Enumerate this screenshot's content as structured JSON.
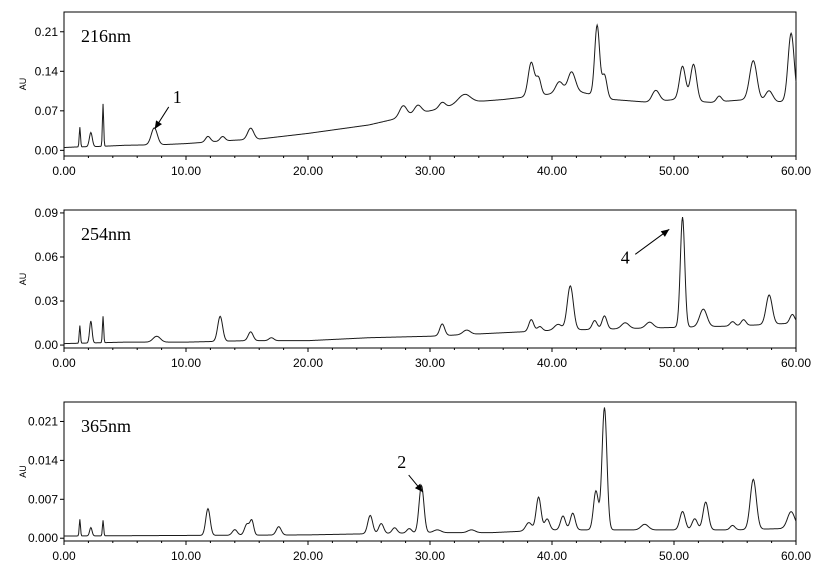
{
  "chart_data": [
    {
      "type": "line",
      "title": "216nm",
      "ylabel": "AU",
      "xlabel": "",
      "xlim": [
        0,
        60
      ],
      "ylim": [
        -0.01,
        0.245
      ],
      "xticks": [
        "0.00",
        "10.00",
        "20.00",
        "30.00",
        "40.00",
        "50.00",
        "60.00"
      ],
      "yticks": [
        "0.00",
        "0.07",
        "0.14",
        "0.21"
      ],
      "ytick_values": [
        0,
        0.07,
        0.14,
        0.21
      ],
      "grid": false,
      "color": "#1a1a1a",
      "baseline": [
        [
          0,
          0.005
        ],
        [
          1,
          0.006
        ],
        [
          3,
          0.007
        ],
        [
          5,
          0.009
        ],
        [
          8,
          0.01
        ],
        [
          10,
          0.012
        ],
        [
          14,
          0.018
        ],
        [
          16,
          0.02
        ],
        [
          20,
          0.03
        ],
        [
          25,
          0.045
        ],
        [
          28,
          0.06
        ],
        [
          30,
          0.07
        ],
        [
          33,
          0.085
        ],
        [
          36,
          0.09
        ],
        [
          38,
          0.095
        ],
        [
          40,
          0.1
        ],
        [
          42,
          0.105
        ],
        [
          45,
          0.09
        ],
        [
          48,
          0.085
        ],
        [
          50,
          0.09
        ],
        [
          53,
          0.085
        ],
        [
          56,
          0.09
        ],
        [
          58,
          0.085
        ],
        [
          60,
          0.088
        ]
      ],
      "peaks": [
        [
          1.3,
          0.035,
          0.05
        ],
        [
          2.2,
          0.025,
          0.12
        ],
        [
          3.2,
          0.075,
          0.05
        ],
        [
          7.4,
          0.03,
          0.25
        ],
        [
          11.8,
          0.01,
          0.2
        ],
        [
          13,
          0.008,
          0.2
        ],
        [
          15.3,
          0.02,
          0.25
        ],
        [
          27.8,
          0.02,
          0.3
        ],
        [
          29,
          0.015,
          0.3
        ],
        [
          31,
          0.01,
          0.25
        ],
        [
          32.8,
          0.015,
          0.5
        ],
        [
          38.3,
          0.06,
          0.25
        ],
        [
          38.9,
          0.03,
          0.2
        ],
        [
          40.6,
          0.02,
          0.3
        ],
        [
          41.6,
          0.035,
          0.3
        ],
        [
          43.7,
          0.125,
          0.2
        ],
        [
          44.3,
          0.04,
          0.2
        ],
        [
          48.5,
          0.02,
          0.3
        ],
        [
          50.7,
          0.06,
          0.25
        ],
        [
          51.6,
          0.065,
          0.25
        ],
        [
          53.7,
          0.01,
          0.2
        ],
        [
          56.5,
          0.07,
          0.3
        ],
        [
          57.8,
          0.02,
          0.3
        ],
        [
          59.6,
          0.12,
          0.25
        ]
      ],
      "annotations": [
        {
          "label": "1",
          "x": 7.6,
          "y": 0.045
        }
      ]
    },
    {
      "type": "line",
      "title": "254nm",
      "ylabel": "AU",
      "xlabel": "",
      "xlim": [
        0,
        60
      ],
      "ylim": [
        -0.002,
        0.092
      ],
      "xticks": [
        "0.00",
        "10.00",
        "20.00",
        "30.00",
        "40.00",
        "50.00",
        "60.00"
      ],
      "yticks": [
        "0.00",
        "0.03",
        "0.06",
        "0.09"
      ],
      "ytick_values": [
        0,
        0.03,
        0.06,
        0.09
      ],
      "grid": false,
      "color": "#1a1a1a",
      "baseline": [
        [
          0,
          0.001
        ],
        [
          5,
          0.002
        ],
        [
          10,
          0.002
        ],
        [
          15,
          0.003
        ],
        [
          20,
          0.003
        ],
        [
          25,
          0.005
        ],
        [
          30,
          0.006
        ],
        [
          35,
          0.008
        ],
        [
          40,
          0.01
        ],
        [
          45,
          0.011
        ],
        [
          50,
          0.012
        ],
        [
          55,
          0.013
        ],
        [
          60,
          0.015
        ]
      ],
      "peaks": [
        [
          1.3,
          0.012,
          0.05
        ],
        [
          2.2,
          0.015,
          0.1
        ],
        [
          3.2,
          0.018,
          0.05
        ],
        [
          7.6,
          0.004,
          0.3
        ],
        [
          12.8,
          0.017,
          0.2
        ],
        [
          15.3,
          0.006,
          0.2
        ],
        [
          17,
          0.002,
          0.2
        ],
        [
          31,
          0.008,
          0.2
        ],
        [
          33,
          0.003,
          0.3
        ],
        [
          38.3,
          0.008,
          0.2
        ],
        [
          39,
          0.003,
          0.2
        ],
        [
          40.5,
          0.004,
          0.3
        ],
        [
          41.5,
          0.03,
          0.25
        ],
        [
          43.5,
          0.006,
          0.2
        ],
        [
          44.3,
          0.009,
          0.2
        ],
        [
          46,
          0.004,
          0.3
        ],
        [
          48,
          0.004,
          0.3
        ],
        [
          50.7,
          0.075,
          0.18
        ],
        [
          52.4,
          0.012,
          0.3
        ],
        [
          54.8,
          0.003,
          0.2
        ],
        [
          55.7,
          0.004,
          0.2
        ],
        [
          57.8,
          0.02,
          0.25
        ],
        [
          59.7,
          0.006,
          0.2
        ]
      ],
      "annotations": [
        {
          "label": "4",
          "x": 48.3,
          "y": 0.07
        }
      ]
    },
    {
      "type": "line",
      "title": "365nm",
      "ylabel": "AU",
      "xlabel": "",
      "xlim": [
        0,
        60
      ],
      "ylim": [
        -0.0005,
        0.0245
      ],
      "xticks": [
        "0.00",
        "10.00",
        "20.00",
        "30.00",
        "40.00",
        "50.00",
        "60.00"
      ],
      "yticks": [
        "0.000",
        "0.007",
        "0.014",
        "0.021"
      ],
      "ytick_values": [
        0,
        0.007,
        0.014,
        0.021
      ],
      "grid": false,
      "color": "#1a1a1a",
      "baseline": [
        [
          0,
          0.0004
        ],
        [
          10,
          0.0005
        ],
        [
          20,
          0.0006
        ],
        [
          25,
          0.0008
        ],
        [
          30,
          0.001
        ],
        [
          35,
          0.001
        ],
        [
          40,
          0.0015
        ],
        [
          45,
          0.0015
        ],
        [
          50,
          0.0015
        ],
        [
          55,
          0.0015
        ],
        [
          60,
          0.0018
        ]
      ],
      "peaks": [
        [
          1.3,
          0.003,
          0.05
        ],
        [
          2.2,
          0.0015,
          0.1
        ],
        [
          3.2,
          0.0028,
          0.05
        ],
        [
          11.8,
          0.0048,
          0.18
        ],
        [
          14,
          0.001,
          0.2
        ],
        [
          15,
          0.002,
          0.2
        ],
        [
          15.4,
          0.0025,
          0.15
        ],
        [
          17.6,
          0.0015,
          0.2
        ],
        [
          25.1,
          0.0033,
          0.2
        ],
        [
          26,
          0.0018,
          0.2
        ],
        [
          27.1,
          0.001,
          0.2
        ],
        [
          28.3,
          0.0008,
          0.2
        ],
        [
          29.3,
          0.0085,
          0.2
        ],
        [
          30.6,
          0.0005,
          0.3
        ],
        [
          33.4,
          0.0005,
          0.3
        ],
        [
          38.1,
          0.0015,
          0.25
        ],
        [
          38.9,
          0.006,
          0.2
        ],
        [
          39.6,
          0.002,
          0.2
        ],
        [
          40.9,
          0.0025,
          0.2
        ],
        [
          41.7,
          0.003,
          0.2
        ],
        [
          43.6,
          0.007,
          0.2
        ],
        [
          44.3,
          0.022,
          0.2
        ],
        [
          47.6,
          0.001,
          0.3
        ],
        [
          50.7,
          0.0033,
          0.22
        ],
        [
          51.7,
          0.002,
          0.22
        ],
        [
          52.6,
          0.005,
          0.22
        ],
        [
          54.8,
          0.0008,
          0.2
        ],
        [
          56.5,
          0.009,
          0.25
        ],
        [
          59.6,
          0.003,
          0.3
        ]
      ],
      "annotations": [
        {
          "label": "2",
          "x": 28.5,
          "y": 0.011
        }
      ]
    }
  ]
}
